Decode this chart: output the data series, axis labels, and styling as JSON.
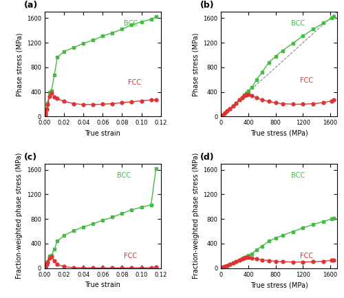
{
  "title_a": "(a)",
  "title_b": "(b)",
  "title_c": "(c)",
  "title_d": "(d)",
  "xlabel_strain": "True strain",
  "xlabel_stress": "True stress (MPa)",
  "ylabel_phase": "Phase stress (MPa)",
  "ylabel_frac": "Fraction-weighted phase stress (MPa)",
  "bcc_color": "#44bb44",
  "fcc_color": "#dd3333",
  "diag_color": "#888888",
  "xlim_strain": [
    0,
    0.12
  ],
  "ylim_phase": [
    0,
    1700
  ],
  "xlim_stress": [
    0,
    1700
  ],
  "true_strain": [
    0.0005,
    0.001,
    0.002,
    0.003,
    0.005,
    0.007,
    0.01,
    0.013,
    0.02,
    0.03,
    0.04,
    0.05,
    0.06,
    0.07,
    0.08,
    0.09,
    0.1,
    0.11,
    0.115
  ],
  "bcc_phase_stress": [
    30,
    60,
    130,
    220,
    390,
    420,
    680,
    960,
    1060,
    1120,
    1190,
    1240,
    1310,
    1360,
    1420,
    1490,
    1540,
    1580,
    1620
  ],
  "fcc_phase_stress": [
    30,
    55,
    120,
    195,
    330,
    380,
    320,
    290,
    245,
    210,
    195,
    195,
    200,
    210,
    225,
    240,
    255,
    270,
    275
  ],
  "true_stress_vals": [
    5,
    15,
    30,
    55,
    90,
    130,
    175,
    220,
    270,
    310,
    340,
    370,
    400,
    450,
    520,
    600,
    700,
    800,
    900,
    1050,
    1200,
    1350,
    1500,
    1620,
    1650
  ],
  "bcc_vs_stress": [
    5,
    15,
    30,
    55,
    90,
    130,
    175,
    220,
    270,
    310,
    345,
    380,
    420,
    470,
    600,
    720,
    880,
    980,
    1070,
    1190,
    1310,
    1420,
    1520,
    1600,
    1620
  ],
  "fcc_vs_stress": [
    5,
    15,
    30,
    55,
    90,
    130,
    175,
    220,
    270,
    310,
    335,
    350,
    360,
    340,
    305,
    270,
    245,
    225,
    210,
    200,
    200,
    210,
    225,
    255,
    270
  ],
  "bcc_frac_strain": [
    15,
    30,
    65,
    110,
    200,
    210,
    310,
    440,
    530,
    610,
    670,
    720,
    780,
    830,
    890,
    950,
    990,
    1030,
    1620
  ],
  "fcc_frac_strain": [
    15,
    28,
    60,
    100,
    165,
    185,
    115,
    60,
    25,
    10,
    7,
    5,
    4,
    4,
    5,
    6,
    7,
    8,
    18
  ],
  "bcc_frac_strain_x": [
    0.0005,
    0.001,
    0.002,
    0.003,
    0.005,
    0.007,
    0.01,
    0.013,
    0.02,
    0.03,
    0.04,
    0.05,
    0.06,
    0.07,
    0.08,
    0.09,
    0.1,
    0.11,
    0.115
  ],
  "fcc_frac_strain_x": [
    0.0005,
    0.001,
    0.002,
    0.003,
    0.005,
    0.007,
    0.01,
    0.013,
    0.02,
    0.03,
    0.04,
    0.05,
    0.06,
    0.07,
    0.08,
    0.09,
    0.1,
    0.11,
    0.115
  ],
  "bcc_frac_stress_x": [
    5,
    15,
    30,
    55,
    90,
    130,
    175,
    220,
    270,
    310,
    340,
    370,
    400,
    450,
    520,
    600,
    700,
    800,
    900,
    1050,
    1200,
    1350,
    1500,
    1620,
    1650
  ],
  "bcc_frac_stress": [
    3,
    8,
    15,
    28,
    45,
    65,
    88,
    110,
    135,
    155,
    172,
    190,
    210,
    235,
    300,
    360,
    440,
    490,
    535,
    595,
    655,
    710,
    760,
    800,
    810
  ],
  "fcc_frac_stress_x": [
    5,
    15,
    30,
    55,
    90,
    130,
    175,
    220,
    270,
    310,
    340,
    370,
    400,
    450,
    520,
    600,
    700,
    800,
    900,
    1050,
    1200,
    1350,
    1500,
    1620,
    1650
  ],
  "fcc_frac_stress": [
    3,
    8,
    15,
    28,
    45,
    65,
    88,
    110,
    135,
    155,
    168,
    175,
    180,
    170,
    153,
    135,
    123,
    113,
    105,
    100,
    100,
    105,
    113,
    128,
    135
  ]
}
